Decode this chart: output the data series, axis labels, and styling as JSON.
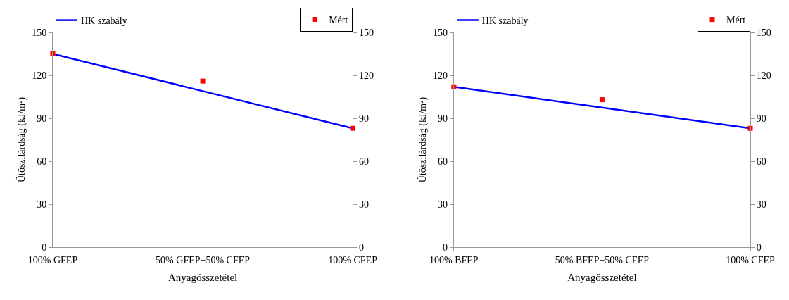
{
  "chart_data": [
    {
      "type": "line",
      "categories": [
        "100% GFEP",
        "50% GFEP+50% CFEP",
        "100% CFEP"
      ],
      "series": [
        {
          "name": "HK szabály",
          "color": "#0000ff",
          "values": [
            135,
            109,
            83
          ],
          "marker": "none",
          "line_style": "solid"
        },
        {
          "name": "Mért",
          "type": "scatter",
          "color": "#ff0000",
          "values": [
            135,
            116,
            83
          ],
          "marker": "square"
        }
      ],
      "xlabel": "Anyagösszetétel",
      "ylabel": "Ütőszilárdság (kJ/m²)",
      "ylim": [
        0,
        150
      ],
      "yticks": [
        0,
        30,
        60,
        90,
        120,
        150
      ],
      "y2lim": [
        0,
        150
      ],
      "y2ticks": [
        0,
        30,
        60,
        90,
        120,
        150
      ],
      "grid": false,
      "legend": "top"
    },
    {
      "type": "line",
      "categories": [
        "100% BFEP",
        "50% BFEP+50% CFEP",
        "100% CFEP"
      ],
      "series": [
        {
          "name": "HK szabály",
          "color": "#0000ff",
          "values": [
            112,
            97.5,
            83
          ],
          "marker": "none",
          "line_style": "solid"
        },
        {
          "name": "Mért",
          "type": "scatter",
          "color": "#ff0000",
          "values": [
            112,
            103,
            83
          ],
          "marker": "square"
        }
      ],
      "xlabel": "Anyagösszetétel",
      "ylabel": "Ütőszilárdság (kJ/m²)",
      "ylim": [
        0,
        150
      ],
      "yticks": [
        0,
        30,
        60,
        90,
        120,
        150
      ],
      "y2lim": [
        0,
        150
      ],
      "y2ticks": [
        0,
        30,
        60,
        90,
        120,
        150
      ],
      "grid": false,
      "legend": "top"
    }
  ]
}
